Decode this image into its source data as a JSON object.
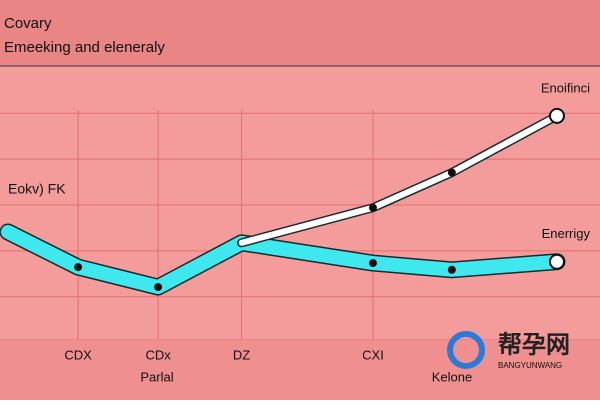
{
  "chart_data": {
    "type": "line",
    "title": "Covary",
    "subtitle": "Emeeking and eleneraly",
    "ylabel": "Eokv) FK",
    "xlim": [
      0,
      100
    ],
    "ylim": [
      0,
      100
    ],
    "xticks": [
      {
        "value": 12,
        "label": "CDX"
      },
      {
        "value": 25.7,
        "label": "CDx"
      },
      {
        "value": 40,
        "label": "DZ"
      },
      {
        "value": 62.5,
        "label": "CXI"
      }
    ],
    "yticks": [
      0,
      16,
      33,
      50,
      67,
      84
    ],
    "grid": true,
    "series": [
      {
        "name": "Enerrigy",
        "color": "#3ee8ee",
        "x": [
          0,
          12,
          25.7,
          40,
          62.5,
          76,
          94
        ],
        "values": [
          40,
          27,
          19.6,
          36,
          28.5,
          26,
          29
        ]
      },
      {
        "name": "Enoifinci",
        "color": "#ffffff",
        "x": [
          40,
          62.5,
          76,
          94
        ],
        "values": [
          36,
          49,
          62,
          83
        ]
      }
    ],
    "annotations": [
      "Parlal",
      "Kelone"
    ],
    "watermark": {
      "title": "帮孕网",
      "subtitle": "BANGYUNWANG"
    }
  }
}
